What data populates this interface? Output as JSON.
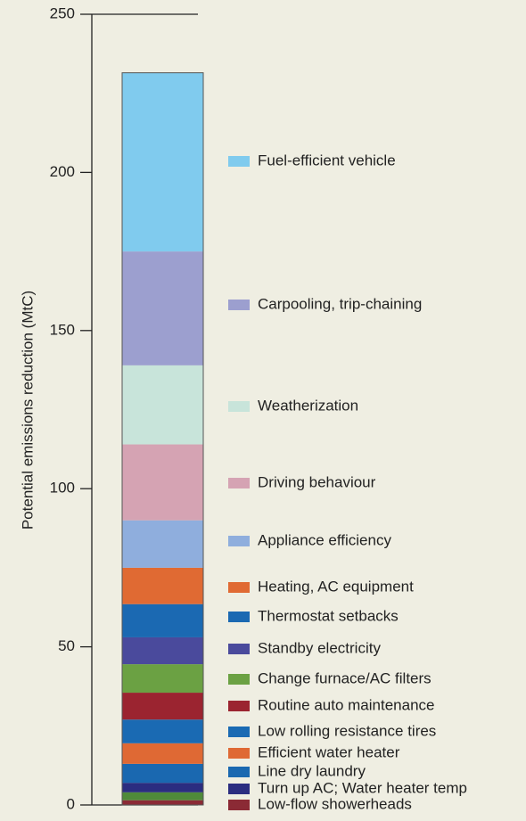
{
  "chart_data": {
    "type": "stacked_bar",
    "ylabel": "Potential emissions reduction (MtC)",
    "ylim": [
      0,
      250
    ],
    "yticks": [
      0,
      50,
      100,
      150,
      200,
      250
    ],
    "series": [
      {
        "name": "Low-flow showerheads",
        "color": "#8b2a35",
        "values": [
          1.5
        ]
      },
      {
        "name": null,
        "color": "#4f8a3a",
        "values": [
          2.5
        ]
      },
      {
        "name": "Turn up AC; Water heater temp",
        "color": "#2b2d80",
        "values": [
          3
        ]
      },
      {
        "name": "Line dry laundry",
        "color": "#1a68b0",
        "values": [
          6
        ]
      },
      {
        "name": "Efficient water heater",
        "color": "#df6934",
        "values": [
          6.5
        ]
      },
      {
        "name": "Low rolling resistance tires",
        "color": "#1a6ab3",
        "values": [
          7.5
        ]
      },
      {
        "name": "Routine auto maintenance",
        "color": "#9b2430",
        "values": [
          8.5
        ]
      },
      {
        "name": "Change furnace/AC filters",
        "color": "#6ba143",
        "values": [
          9
        ]
      },
      {
        "name": "Standby electricity",
        "color": "#4a4a9c",
        "values": [
          8.5
        ]
      },
      {
        "name": "Thermostat setbacks",
        "color": "#1b69b2",
        "values": [
          10.5
        ]
      },
      {
        "name": "Heating, AC equipment",
        "color": "#e06a33",
        "values": [
          11.5
        ]
      },
      {
        "name": "Appliance efficiency",
        "color": "#8faedd",
        "values": [
          15
        ]
      },
      {
        "name": "Driving behaviour",
        "color": "#d5a3b3",
        "values": [
          24
        ]
      },
      {
        "name": "Weatherization",
        "color": "#c8e4da",
        "values": [
          25
        ]
      },
      {
        "name": "Carpooling, trip-chaining",
        "color": "#9c9fcf",
        "values": [
          36
        ]
      },
      {
        "name": "Fuel-efficient vehicle",
        "color": "#80cbee",
        "values": [
          56.5
        ]
      }
    ]
  }
}
